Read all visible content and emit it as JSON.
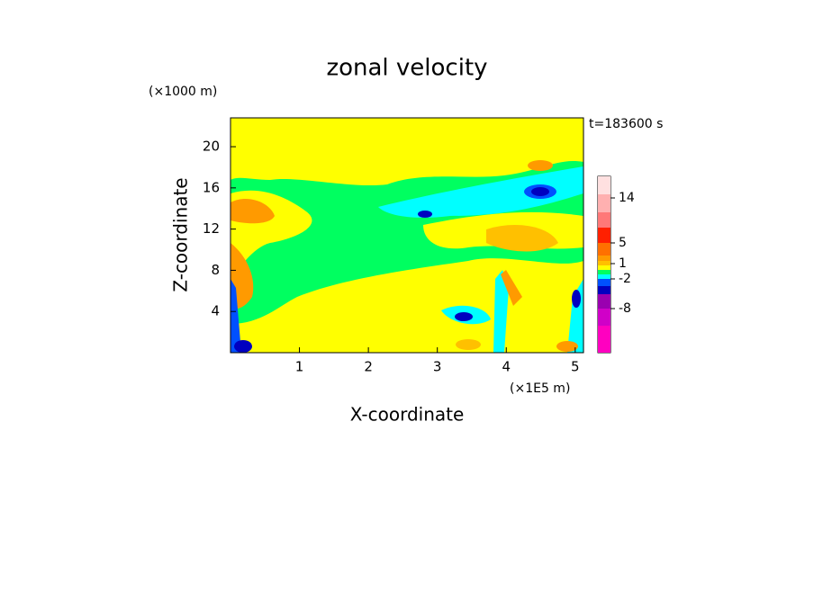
{
  "chart_data": {
    "type": "contour",
    "title": "zonal velocity",
    "x_label": "X-coordinate",
    "y_label": "Z-coordinate",
    "x_unit": "(×1E5 m)",
    "y_unit": "(×1000 m)",
    "annotation": "t=183600 s",
    "xlim": [
      0,
      5.12
    ],
    "xticks": [
      1,
      2,
      3,
      4,
      5
    ],
    "ylim": [
      0,
      22.8
    ],
    "yticks": [
      4,
      8,
      12,
      16,
      20
    ],
    "colorbar": {
      "colors": [
        "#ff00c0",
        "#d000c8",
        "#9a00b0",
        "#0000c0",
        "#0050ff",
        "#00ffff",
        "#00ff60",
        "#ffff00",
        "#ffc000",
        "#ff9a00",
        "#ff7000",
        "#ff2000",
        "#ff7878",
        "#ffb0b0",
        "#ffe0e0"
      ],
      "ticks": [
        -8,
        -2,
        1,
        5,
        14
      ]
    }
  }
}
